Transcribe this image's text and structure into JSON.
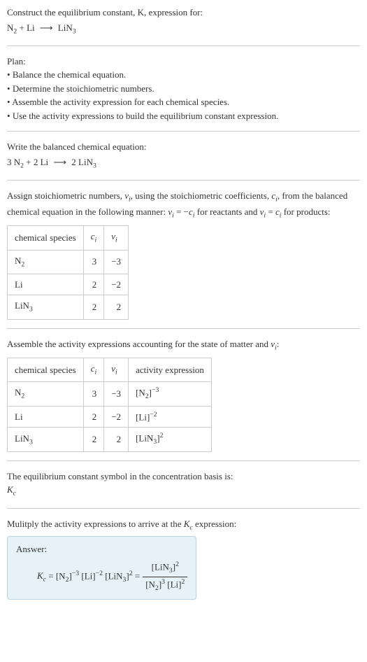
{
  "header": {
    "line1": "Construct the equilibrium constant, K, expression for:",
    "equation_left": "N",
    "equation_sub1": "2",
    "equation_plus": " + Li ",
    "equation_arrow": "⟶",
    "equation_right": " LiN",
    "equation_sub2": "3"
  },
  "plan": {
    "title": "Plan:",
    "items": [
      "Balance the chemical equation.",
      "Determine the stoichiometric numbers.",
      "Assemble the activity expression for each chemical species.",
      "Use the activity expressions to build the equilibrium constant expression."
    ]
  },
  "balanced": {
    "title": "Write the balanced chemical equation:",
    "eq_parts": {
      "p1": "3 N",
      "s1": "2",
      "p2": " + 2 Li ",
      "arrow": "⟶",
      "p3": " 2 LiN",
      "s3": "3"
    }
  },
  "stoich": {
    "intro1": "Assign stoichiometric numbers, ",
    "nu": "ν",
    "sub_i": "i",
    "intro2": ", using the stoichiometric coefficients, ",
    "c": "c",
    "intro3": ", from the balanced chemical equation in the following manner: ",
    "eq1": " = −",
    "intro4": " for reactants and ",
    "eq2": " = ",
    "intro5": " for products:",
    "table": {
      "headers": [
        "chemical species",
        "cᵢ",
        "νᵢ"
      ],
      "rows": [
        {
          "species": "N₂",
          "c": "3",
          "nu": "−3"
        },
        {
          "species": "Li",
          "c": "2",
          "nu": "−2"
        },
        {
          "species": "LiN₃",
          "c": "2",
          "nu": "2"
        }
      ]
    }
  },
  "activity": {
    "intro": "Assemble the activity expressions accounting for the state of matter and νᵢ:",
    "table": {
      "headers": [
        "chemical species",
        "cᵢ",
        "νᵢ",
        "activity expression"
      ],
      "rows": [
        {
          "species": "N₂",
          "c": "3",
          "nu": "−3",
          "expr_base": "[N₂]",
          "expr_sup": "−3"
        },
        {
          "species": "Li",
          "c": "2",
          "nu": "−2",
          "expr_base": "[Li]",
          "expr_sup": "−2"
        },
        {
          "species": "LiN₃",
          "c": "2",
          "nu": "2",
          "expr_base": "[LiN₃]",
          "expr_sup": "2"
        }
      ]
    }
  },
  "kc_symbol": {
    "intro": "The equilibrium constant symbol in the concentration basis is:",
    "symbol": "K",
    "sub": "c"
  },
  "multiply": {
    "intro": "Mulitply the activity expressions to arrive at the Kc expression:"
  },
  "answer": {
    "label": "Answer:",
    "lhs": "K",
    "lhs_sub": "c",
    "eq": " = ",
    "t1": "[N₂]",
    "t1s": "−3",
    "t2": " [Li]",
    "t2s": "−2",
    "t3": " [LiN₃]",
    "t3s": "2",
    "eq2": " = ",
    "frac_num": "[LiN₃]",
    "frac_num_s": "2",
    "frac_den1": "[N₂]",
    "frac_den1_s": "3",
    "frac_den2": " [Li]",
    "frac_den2_s": "2"
  }
}
